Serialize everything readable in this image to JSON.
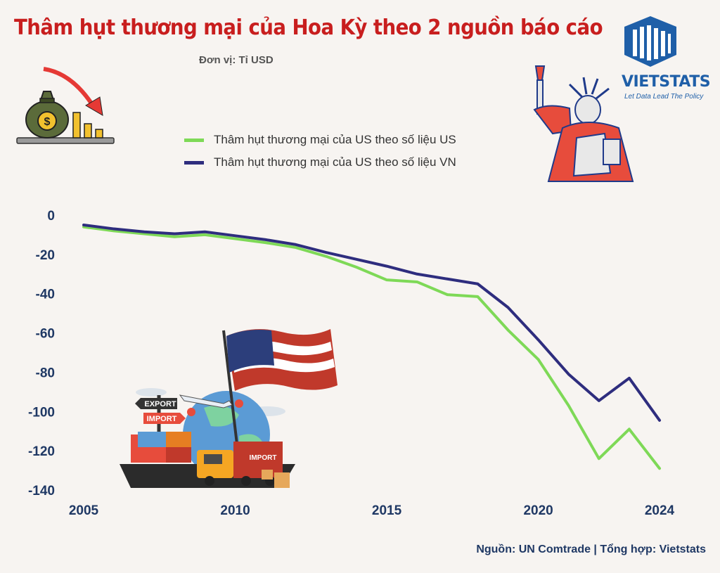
{
  "header": {
    "title": "Thâm hụt thương mại của Hoa Kỳ theo 2 nguồn báo cáo",
    "unit": "Đơn vị: Tỉ USD"
  },
  "brand": {
    "name": "VIETSTATS",
    "tagline": "Let Data Lead The Policy"
  },
  "footer": {
    "source": "Nguồn: UN Comtrade | Tổng hợp: Vietstats"
  },
  "illustration": {
    "export_label": "EXPORT",
    "import_label": "IMPORT",
    "container_label": "IMPORT"
  },
  "chart_data": {
    "type": "line",
    "x": [
      2005,
      2006,
      2007,
      2008,
      2009,
      2010,
      2011,
      2012,
      2013,
      2014,
      2015,
      2016,
      2017,
      2018,
      2019,
      2020,
      2021,
      2022,
      2023,
      2024
    ],
    "x_ticks": [
      2005,
      2010,
      2015,
      2020,
      2024
    ],
    "y_ticks": [
      0,
      -20,
      -40,
      -60,
      -80,
      -100,
      -120,
      -140
    ],
    "ylim": [
      -140,
      5
    ],
    "series": [
      {
        "name": "Thâm hụt thương mại của US theo số liệu US",
        "color": "#7ed957",
        "values": [
          -6,
          -8,
          -9.5,
          -11,
          -10,
          -12,
          -14,
          -16.5,
          -21,
          -26.5,
          -33,
          -34,
          -40.5,
          -41.5,
          -58.5,
          -73.5,
          -97,
          -124,
          -109,
          -129
        ]
      },
      {
        "name": "Thâm hụt thương mại của US theo số liệu VN",
        "color": "#2e2d7e",
        "values": [
          -5,
          -7,
          -8.5,
          -9.5,
          -8.5,
          -10.5,
          -12.5,
          -15,
          -19,
          -22.5,
          -26,
          -30,
          -32.5,
          -35,
          -47,
          -63.5,
          -81,
          -94.5,
          -83,
          -104.5
        ]
      }
    ]
  }
}
